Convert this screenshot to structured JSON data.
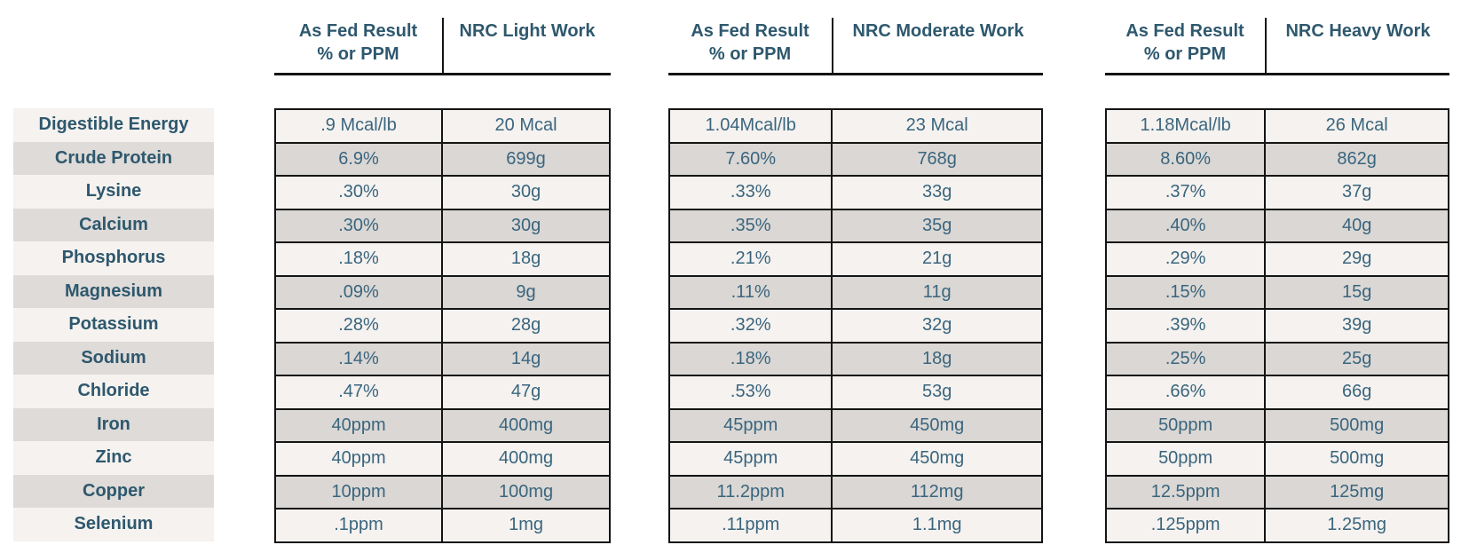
{
  "table": {
    "description": "Nutrient analysis vs NRC work-level requirements",
    "row_labels": [
      "Digestible Energy",
      "Crude Protein",
      "Lysine",
      "Calcium",
      "Phosphorus",
      "Magnesium",
      "Potassium",
      "Sodium",
      "Chloride",
      "Iron",
      "Zinc",
      "Copper",
      "Selenium"
    ],
    "sections": [
      {
        "as_fed_header_line1": "As Fed Result",
        "as_fed_header_line2": "% or PPM",
        "nrc_header": "NRC Light Work",
        "rows": [
          [
            ".9 Mcal/lb",
            "20 Mcal"
          ],
          [
            "6.9%",
            "699g"
          ],
          [
            ".30%",
            "30g"
          ],
          [
            ".30%",
            "30g"
          ],
          [
            ".18%",
            "18g"
          ],
          [
            ".09%",
            "9g"
          ],
          [
            ".28%",
            "28g"
          ],
          [
            ".14%",
            "14g"
          ],
          [
            ".47%",
            "47g"
          ],
          [
            "40ppm",
            "400mg"
          ],
          [
            "40ppm",
            "400mg"
          ],
          [
            "10ppm",
            "100mg"
          ],
          [
            ".1ppm",
            "1mg"
          ]
        ]
      },
      {
        "as_fed_header_line1": "As Fed Result",
        "as_fed_header_line2": "% or PPM",
        "nrc_header": "NRC Moderate Work",
        "rows": [
          [
            "1.04Mcal/lb",
            "23 Mcal"
          ],
          [
            "7.60%",
            "768g"
          ],
          [
            ".33%",
            "33g"
          ],
          [
            ".35%",
            "35g"
          ],
          [
            ".21%",
            "21g"
          ],
          [
            ".11%",
            "11g"
          ],
          [
            ".32%",
            "32g"
          ],
          [
            ".18%",
            "18g"
          ],
          [
            ".53%",
            "53g"
          ],
          [
            "45ppm",
            "450mg"
          ],
          [
            "45ppm",
            "450mg"
          ],
          [
            "11.2ppm",
            "112mg"
          ],
          [
            ".11ppm",
            "1.1mg"
          ]
        ]
      },
      {
        "as_fed_header_line1": "As Fed Result",
        "as_fed_header_line2": "% or PPM",
        "nrc_header": "NRC Heavy Work",
        "rows": [
          [
            "1.18Mcal/lb",
            "26 Mcal"
          ],
          [
            "8.60%",
            "862g"
          ],
          [
            ".37%",
            "37g"
          ],
          [
            ".40%",
            "40g"
          ],
          [
            ".29%",
            "29g"
          ],
          [
            ".15%",
            "15g"
          ],
          [
            ".39%",
            "39g"
          ],
          [
            ".25%",
            "25g"
          ],
          [
            ".66%",
            "66g"
          ],
          [
            "50ppm",
            "500mg"
          ],
          [
            "50ppm",
            "500mg"
          ],
          [
            "12.5ppm",
            "125mg"
          ],
          [
            ".125ppm",
            "1.25mg"
          ]
        ]
      }
    ]
  },
  "colors": {
    "header_text": "#2e586e",
    "value_text": "#3a657e",
    "row_light": "#f5f2ef",
    "row_gray_labels": "#dedbd8",
    "row_gray_cells": "#dad7d4",
    "border": "#141414",
    "background": "#ffffff"
  }
}
